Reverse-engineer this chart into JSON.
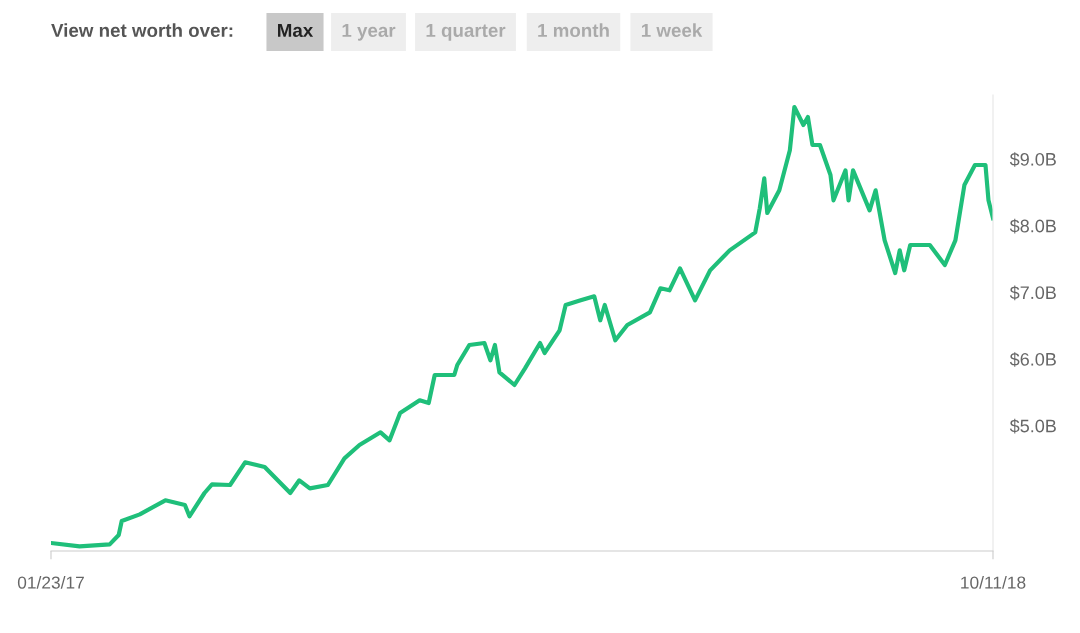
{
  "chart_data": {
    "type": "line",
    "annotations": [
      "View net worth over:",
      "Max",
      "1 year",
      "1 quarter",
      "1 month",
      "1 week"
    ],
    "x": [
      "2017-01-23",
      "2017-02-11",
      "2017-03-03",
      "2017-03-09",
      "2017-03-11",
      "2017-03-23",
      "2017-04-09",
      "2017-04-22",
      "2017-04-25",
      "2017-05-05",
      "2017-05-10",
      "2017-05-22",
      "2017-06-01",
      "2017-06-14",
      "2017-07-01",
      "2017-07-07",
      "2017-07-14",
      "2017-07-26",
      "2017-08-06",
      "2017-08-16",
      "2017-08-30",
      "2017-09-05",
      "2017-09-12",
      "2017-09-25",
      "2017-10-01",
      "2017-10-05",
      "2017-10-18",
      "2017-10-20",
      "2017-10-28",
      "2017-11-07",
      "2017-11-11",
      "2017-11-14",
      "2017-11-17",
      "2017-11-27",
      "2017-12-04",
      "2017-12-14",
      "2017-12-17",
      "2017-12-27",
      "2017-12-31",
      "2018-01-10",
      "2018-01-19",
      "2018-01-23",
      "2018-01-26",
      "2018-02-02",
      "2018-02-10",
      "2018-02-25",
      "2018-03-04",
      "2018-03-10",
      "2018-03-17",
      "2018-03-27",
      "2018-04-06",
      "2018-04-19",
      "2018-05-06",
      "2018-05-09",
      "2018-05-12",
      "2018-05-14",
      "2018-05-22",
      "2018-05-29",
      "2018-06-01",
      "2018-06-07",
      "2018-06-10",
      "2018-06-13",
      "2018-06-18",
      "2018-06-25",
      "2018-06-27",
      "2018-07-05",
      "2018-07-07",
      "2018-07-10",
      "2018-07-21",
      "2018-07-25",
      "2018-07-31",
      "2018-08-07",
      "2018-08-10",
      "2018-08-13",
      "2018-08-17",
      "2018-08-30",
      "2018-09-09",
      "2018-09-16",
      "2018-09-22",
      "2018-09-29",
      "2018-10-06",
      "2018-10-08",
      "2018-10-11"
    ],
    "series": [
      {
        "color": "#1fbf7a",
        "values": [
          3.24,
          3.19,
          3.22,
          3.36,
          3.57,
          3.67,
          3.88,
          3.81,
          3.64,
          3.99,
          4.12,
          4.11,
          4.45,
          4.38,
          3.99,
          4.18,
          4.06,
          4.11,
          4.51,
          4.71,
          4.9,
          4.78,
          5.19,
          5.38,
          5.34,
          5.76,
          5.76,
          5.91,
          6.21,
          6.24,
          5.98,
          6.21,
          5.8,
          5.61,
          5.86,
          6.24,
          6.09,
          6.43,
          6.81,
          6.88,
          6.94,
          6.58,
          6.81,
          6.28,
          6.51,
          6.7,
          7.06,
          7.03,
          7.36,
          6.88,
          7.33,
          7.63,
          7.9,
          8.26,
          8.71,
          8.19,
          8.53,
          9.13,
          9.78,
          9.51,
          9.63,
          9.21,
          9.21,
          8.76,
          8.38,
          8.83,
          8.38,
          8.83,
          8.23,
          8.53,
          7.78,
          7.29,
          7.63,
          7.33,
          7.71,
          7.71,
          7.41,
          7.78,
          8.61,
          8.91,
          8.91,
          8.38,
          8.11
        ]
      }
    ],
    "xlim": [
      "2017-01-23",
      "2018-10-11"
    ],
    "xticks": [
      {
        "value": "2017-01-23",
        "label": "01/23/17"
      },
      {
        "value": "2018-10-11",
        "label": "10/11/18"
      }
    ],
    "ylim": [
      3.12,
      9.96
    ],
    "yticks": [
      {
        "value": 5,
        "label": "$5.0B"
      },
      {
        "value": 6,
        "label": "$6.0B"
      },
      {
        "value": 7,
        "label": "$7.0B"
      },
      {
        "value": 8,
        "label": "$8.0B"
      },
      {
        "value": 9,
        "label": "$9.0B"
      }
    ],
    "grid": false,
    "legend": false,
    "marker": "none",
    "line_style": "solid"
  }
}
